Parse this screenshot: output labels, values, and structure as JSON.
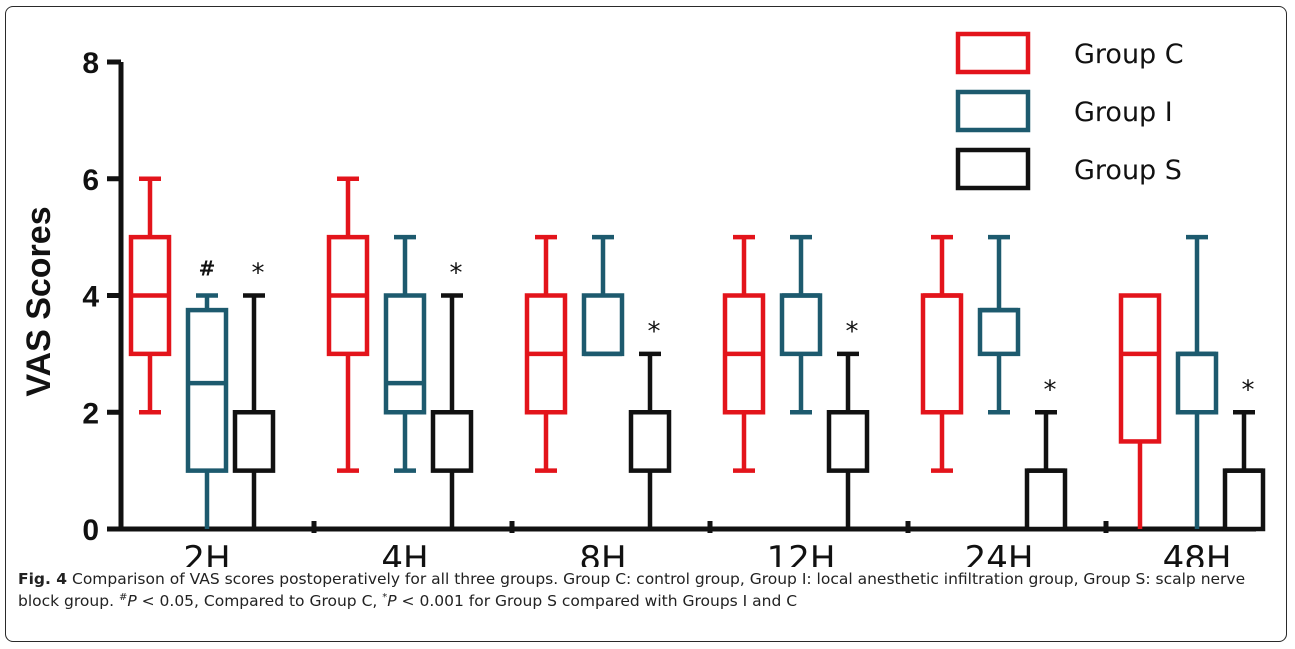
{
  "chart_data": {
    "type": "box",
    "ylabel": "VAS Scores",
    "xlabel": "",
    "ylim": [
      0,
      8
    ],
    "yticks": [
      "0",
      "2",
      "4",
      "6",
      "8"
    ],
    "categories": [
      "2H",
      "4H",
      "8H",
      "12H",
      "24H",
      "48H"
    ],
    "series": [
      {
        "name": "Group C",
        "color": "#e3141b",
        "boxes": [
          {
            "min": 2,
            "q1": 3,
            "median": 4,
            "q3": 5,
            "max": 6
          },
          {
            "min": 1,
            "q1": 3,
            "median": 4,
            "q3": 5,
            "max": 6
          },
          {
            "min": 1,
            "q1": 2,
            "median": 3,
            "q3": 4,
            "max": 5
          },
          {
            "min": 1,
            "q1": 2,
            "median": 3,
            "q3": 4,
            "max": 5
          },
          {
            "min": 1,
            "q1": 2,
            "median": 4,
            "q3": 4,
            "max": 5
          },
          {
            "min": 0,
            "q1": 1.5,
            "median": 3,
            "q3": 4,
            "max": 4
          }
        ]
      },
      {
        "name": "Group I",
        "color": "#1d5a6e",
        "boxes": [
          {
            "min": 0,
            "q1": 1,
            "median": 2.5,
            "q3": 3.75,
            "max": 4
          },
          {
            "min": 1,
            "q1": 2,
            "median": 2.5,
            "q3": 4,
            "max": 5
          },
          {
            "min": 3,
            "q1": 3,
            "median": 3,
            "q3": 4,
            "max": 5
          },
          {
            "min": 2,
            "q1": 3,
            "median": 4,
            "q3": 4,
            "max": 5
          },
          {
            "min": 2,
            "q1": 3,
            "median": 3.75,
            "q3": 3.75,
            "max": 5
          },
          {
            "min": 0,
            "q1": 2,
            "median": 3,
            "q3": 3,
            "max": 5
          }
        ]
      },
      {
        "name": "Group S",
        "color": "#111111",
        "boxes": [
          {
            "min": 0,
            "q1": 1,
            "median": 2,
            "q3": 2,
            "max": 4
          },
          {
            "min": 0,
            "q1": 1,
            "median": 2,
            "q3": 2,
            "max": 4
          },
          {
            "min": 0,
            "q1": 1,
            "median": 2,
            "q3": 2,
            "max": 3
          },
          {
            "min": 0,
            "q1": 1,
            "median": 2,
            "q3": 2,
            "max": 3
          },
          {
            "min": 0,
            "q1": 0,
            "median": 1,
            "q3": 1,
            "max": 2
          },
          {
            "min": 0,
            "q1": 0,
            "median": 1,
            "q3": 1,
            "max": 2
          }
        ]
      }
    ],
    "annotations": [
      {
        "category": "2H",
        "series": "Group I",
        "text": "#"
      },
      {
        "category": "2H",
        "series": "Group S",
        "text": "*"
      },
      {
        "category": "4H",
        "series": "Group S",
        "text": "*"
      },
      {
        "category": "8H",
        "series": "Group S",
        "text": "*"
      },
      {
        "category": "12H",
        "series": "Group S",
        "text": "*"
      },
      {
        "category": "24H",
        "series": "Group S",
        "text": "*"
      },
      {
        "category": "48H",
        "series": "Group S",
        "text": "*"
      }
    ],
    "legend": {
      "placement": "top-right"
    },
    "grid": false
  },
  "caption": {
    "label": "Fig. 4",
    "text1": " Comparison of VAS scores postoperatively for all three groups. Group C: control group, Group I: local anesthetic infiltration group, Group S: scalp nerve block group. ",
    "sym1": "#",
    "p1": "P",
    "text2": " < 0.05, Compared to Group C, ",
    "sym2": "*",
    "p2": "P",
    "text3": " < 0.001 for Group S compared with Groups I and C"
  }
}
